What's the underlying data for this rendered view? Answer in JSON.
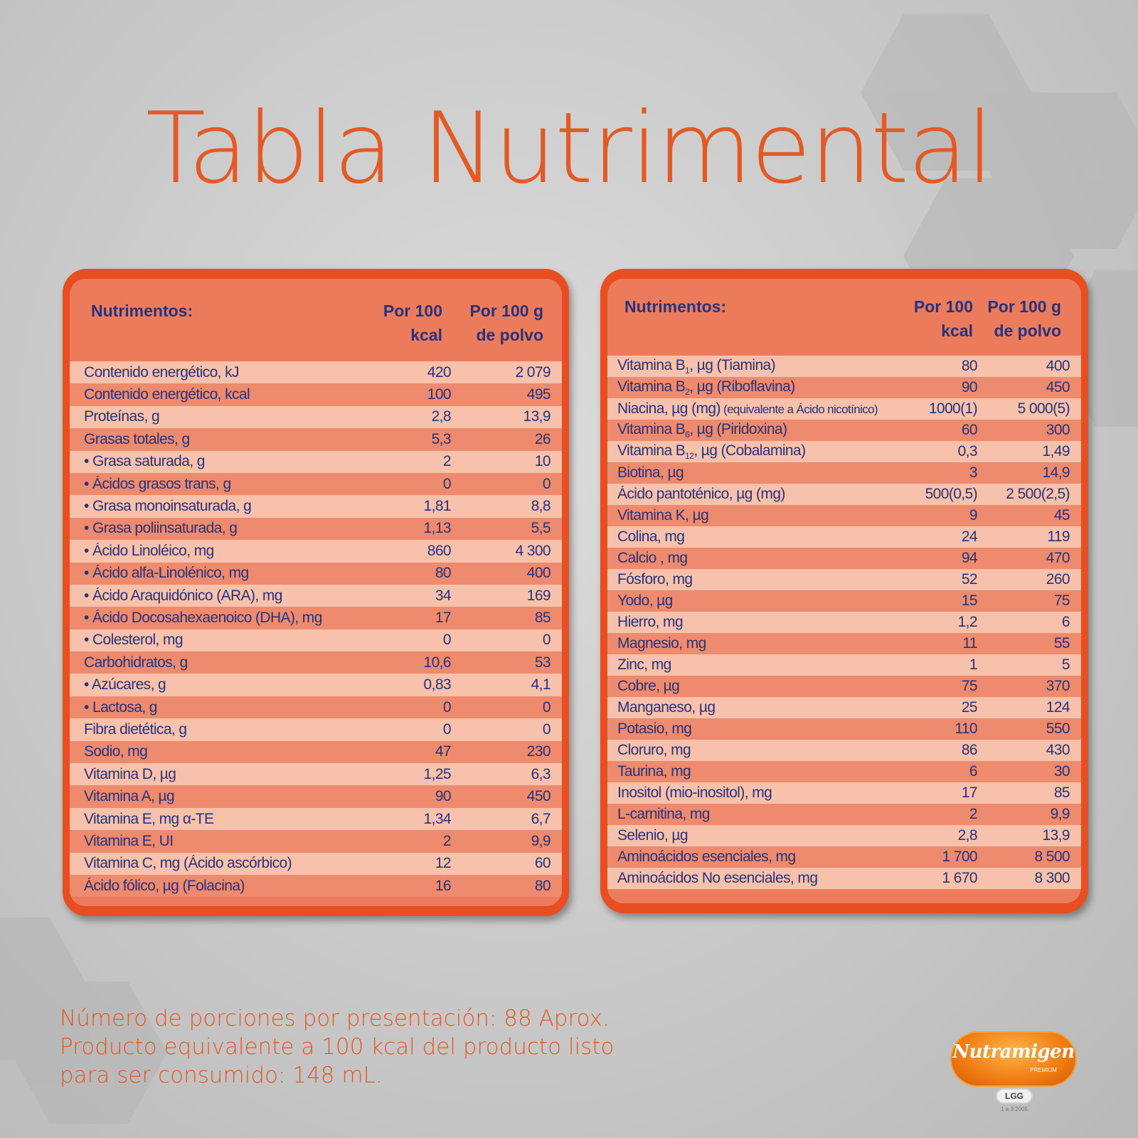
{
  "title": "Tabla Nutrimental",
  "left_table": {
    "header": {
      "col_name": "Nutrimentos:",
      "col1_line1": "Por 100",
      "col1_line2": "kcal",
      "col2_line1": "Por 100 g",
      "col2_line2": "de polvo"
    },
    "rows": [
      {
        "label": "Contenido energético, kJ",
        "v1": "420",
        "v2": "2 079"
      },
      {
        "label": "Contenido energético, kcal",
        "v1": "100",
        "v2": "495"
      },
      {
        "label": "Proteínas, g",
        "v1": "2,8",
        "v2": "13,9"
      },
      {
        "label": "Grasas totales, g",
        "v1": "5,3",
        "v2": "26"
      },
      {
        "label": "• Grasa saturada, g",
        "v1": "2",
        "v2": "10"
      },
      {
        "label": "• Ácidos grasos trans, g",
        "v1": "0",
        "v2": "0"
      },
      {
        "label": "• Grasa monoinsaturada, g",
        "v1": "1,81",
        "v2": "8,8"
      },
      {
        "label": "• Grasa poliinsaturada, g",
        "v1": "1,13",
        "v2": "5,5"
      },
      {
        "label": "• Ácido Linoléico, mg",
        "v1": "860",
        "v2": "4 300"
      },
      {
        "label": "• Ácido alfa-Linolénico, mg",
        "v1": "80",
        "v2": "400"
      },
      {
        "label": "• Ácido Araquidónico (ARA), mg",
        "v1": "34",
        "v2": "169"
      },
      {
        "label": "• Ácido Docosahexaenoico (DHA), mg",
        "v1": "17",
        "v2": "85"
      },
      {
        "label": "• Colesterol, mg",
        "v1": "0",
        "v2": "0"
      },
      {
        "label": "Carbohidratos, g",
        "v1": "10,6",
        "v2": "53"
      },
      {
        "label": "• Azúcares, g",
        "v1": "0,83",
        "v2": "4,1"
      },
      {
        "label": "• Lactosa, g",
        "v1": "0",
        "v2": "0"
      },
      {
        "label": "Fibra dietética, g",
        "v1": "0",
        "v2": "0"
      },
      {
        "label": "Sodio, mg",
        "v1": "47",
        "v2": "230"
      },
      {
        "label": "Vitamina D, µg",
        "v1": "1,25",
        "v2": "6,3"
      },
      {
        "label": "Vitamina A, µg",
        "v1": "90",
        "v2": "450"
      },
      {
        "label": "Vitamina E, mg α-TE",
        "v1": "1,34",
        "v2": "6,7"
      },
      {
        "label": "Vitamina E, UI",
        "v1": "2",
        "v2": "9,9"
      },
      {
        "label": "Vitamina C, mg (Ácido ascórbico)",
        "v1": "12",
        "v2": "60"
      },
      {
        "label": "Ácido fólico, µg (Folacina)",
        "v1": "16",
        "v2": "80"
      }
    ]
  },
  "right_table": {
    "header": {
      "col_name": "Nutrimentos:",
      "col1_line1": "Por 100",
      "col1_line2": "kcal",
      "col2_line1": "Por 100 g",
      "col2_line2": "de polvo"
    },
    "rows": [
      {
        "label": "Vitamina B",
        "sub": "1",
        "suffix": ", µg (Tiamina)",
        "v1": "80",
        "v2": "400"
      },
      {
        "label": "Vitamina B",
        "sub": "2",
        "suffix": ", µg (Riboflavina)",
        "v1": "90",
        "v2": "450"
      },
      {
        "label": "Niacina, µg (mg)",
        "small": " (equivalente a Ácido nicotínico)",
        "v1": "1000(1)",
        "v2": "5 000(5)"
      },
      {
        "label": "Vitamina B",
        "sub": "6",
        "suffix": ", µg (Piridoxina)",
        "v1": "60",
        "v2": "300"
      },
      {
        "label": "Vitamina B",
        "sub": "12",
        "suffix": ", µg (Cobalamina)",
        "v1": "0,3",
        "v2": "1,49"
      },
      {
        "label": "Biotina, µg",
        "v1": "3",
        "v2": "14,9"
      },
      {
        "label": "Ácido pantoténico, µg (mg)",
        "v1": "500(0,5)",
        "v2": "2 500(2,5)"
      },
      {
        "label": "Vitamina K, µg",
        "v1": "9",
        "v2": "45"
      },
      {
        "label": "Colina, mg",
        "v1": "24",
        "v2": "119"
      },
      {
        "label": "Calcio , mg",
        "v1": "94",
        "v2": "470"
      },
      {
        "label": "Fósforo, mg",
        "v1": "52",
        "v2": "260"
      },
      {
        "label": "Yodo, µg",
        "v1": "15",
        "v2": "75"
      },
      {
        "label": "Hierro, mg",
        "v1": "1,2",
        "v2": "6"
      },
      {
        "label": "Magnesio, mg",
        "v1": "11",
        "v2": "55"
      },
      {
        "label": "Zinc, mg",
        "v1": "1",
        "v2": "5"
      },
      {
        "label": "Cobre, µg",
        "v1": "75",
        "v2": "370"
      },
      {
        "label": "Manganeso, µg",
        "v1": "25",
        "v2": "124"
      },
      {
        "label": "Potasio, mg",
        "v1": "110",
        "v2": "550"
      },
      {
        "label": "Cloruro, mg",
        "v1": "86",
        "v2": "430"
      },
      {
        "label": "Taurina, mg",
        "v1": "6",
        "v2": "30"
      },
      {
        "label": "Inositol (mio-inositol), mg",
        "v1": "17",
        "v2": "85"
      },
      {
        "label": "L-carnitina, mg",
        "v1": "2",
        "v2": "9,9"
      },
      {
        "label": "Selenio, µg",
        "v1": "2,8",
        "v2": "13,9"
      },
      {
        "label": "Aminoácidos esenciales, mg",
        "v1": "1 700",
        "v2": "8 500"
      },
      {
        "label": "Aminoácidos No esenciales, mg",
        "v1": "1 670",
        "v2": "8 300"
      }
    ]
  },
  "footer": {
    "line1": "Número de porciones por presentación: 88 Aprox.",
    "line2": "Producto equivalente a 100 kcal del producto listo",
    "line3": "para ser consumido: 148 mL."
  },
  "logo": {
    "brand": "Nutramigen",
    "tag": "PREMIUM",
    "badge": "LGG",
    "small": "1 a 3 2005"
  },
  "colors": {
    "accent": "#e35a25",
    "card_border": "#e84e1f",
    "row_light": "#f8c1ab",
    "row_dark": "#ee8a6d",
    "text_navy": "#27337b"
  }
}
